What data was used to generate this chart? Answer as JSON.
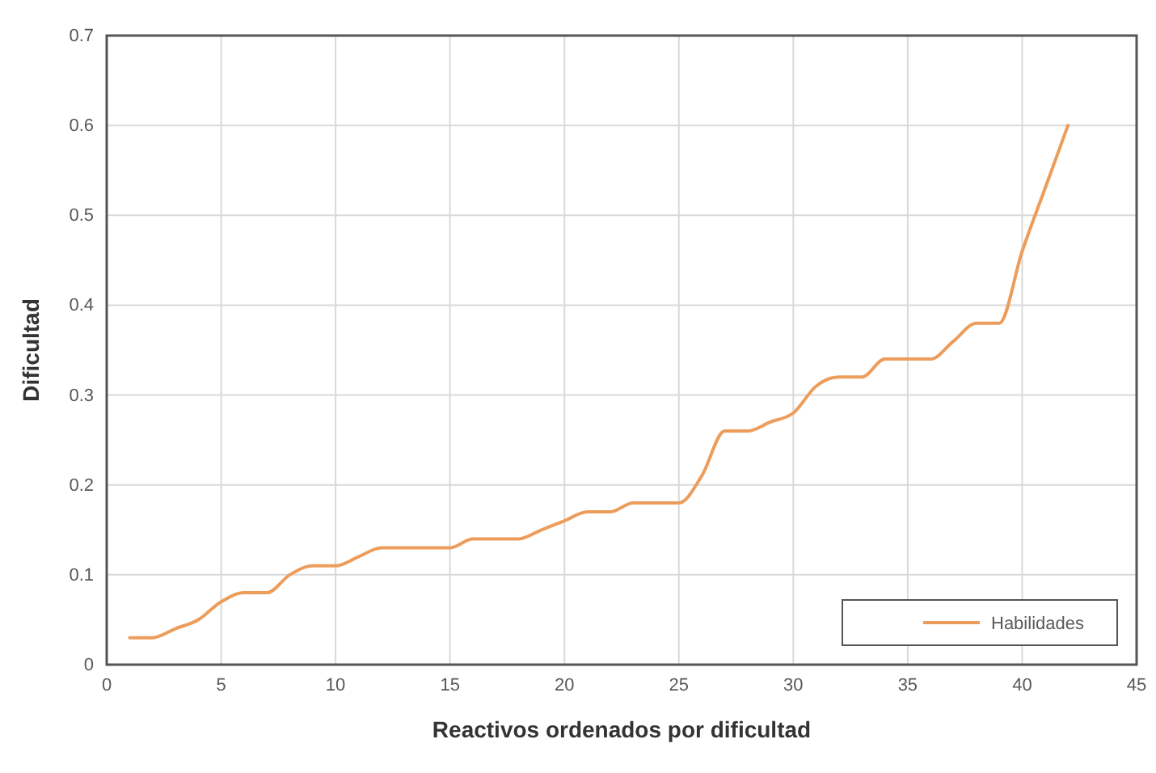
{
  "chart_data": {
    "type": "line",
    "xlabel": "Reactivos ordenados por dificultad",
    "ylabel": "Dificultad",
    "x": [
      1,
      2,
      3,
      4,
      5,
      6,
      7,
      8,
      9,
      10,
      11,
      12,
      13,
      14,
      15,
      16,
      17,
      18,
      19,
      20,
      21,
      22,
      23,
      24,
      25,
      26,
      27,
      28,
      29,
      30,
      31,
      32,
      33,
      34,
      35,
      36,
      37,
      38,
      39,
      40,
      41,
      42
    ],
    "series": [
      {
        "name": "Habilidades",
        "color": "#ed9d5b",
        "values": [
          0.03,
          0.03,
          0.04,
          0.05,
          0.07,
          0.08,
          0.08,
          0.1,
          0.11,
          0.11,
          0.12,
          0.13,
          0.13,
          0.13,
          0.13,
          0.14,
          0.14,
          0.14,
          0.15,
          0.16,
          0.17,
          0.17,
          0.18,
          0.18,
          0.18,
          0.21,
          0.26,
          0.26,
          0.27,
          0.28,
          0.31,
          0.32,
          0.32,
          0.34,
          0.34,
          0.34,
          0.36,
          0.38,
          0.38,
          0.46,
          0.53,
          0.6
        ]
      }
    ],
    "xlim": [
      0,
      45
    ],
    "xticks": [
      0,
      5,
      10,
      15,
      20,
      25,
      30,
      35,
      40,
      45
    ],
    "ylim": [
      0,
      0.7
    ],
    "yticks": [
      0,
      0.1,
      0.2,
      0.3,
      0.4,
      0.5,
      0.6,
      0.7
    ],
    "grid": true,
    "legend": "bottom right",
    "marker": "none",
    "line_style": "solid"
  }
}
